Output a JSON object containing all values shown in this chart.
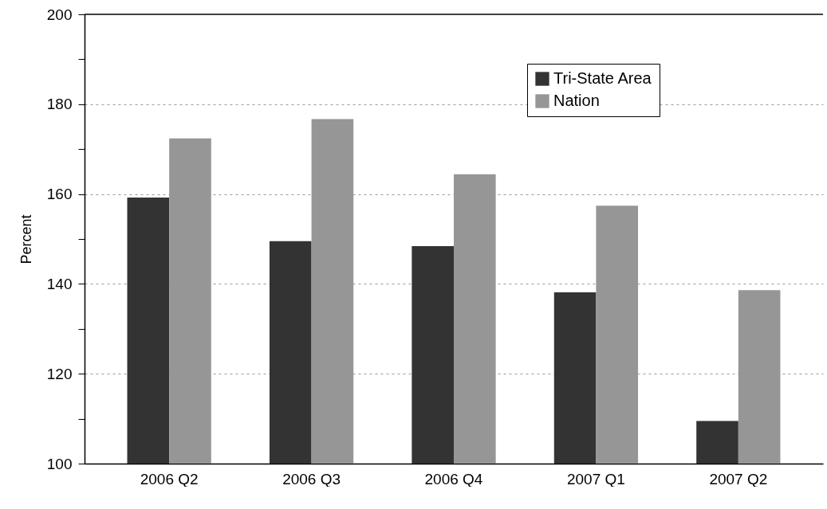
{
  "chart_data": {
    "type": "bar",
    "ylabel": "Percent",
    "categories": [
      "2006 Q2",
      "2006 Q3",
      "2006 Q4",
      "2007 Q1",
      "2007 Q2"
    ],
    "series": [
      {
        "name": "Tri-State Area",
        "color": "#333333",
        "values": [
          159.2,
          149.5,
          148.4,
          138.1,
          109.5
        ]
      },
      {
        "name": "Nation",
        "color": "#969696",
        "values": [
          172.4,
          176.7,
          164.4,
          157.4,
          138.6
        ]
      }
    ],
    "ylim": [
      100,
      200
    ],
    "yticks": [
      100,
      {
        "value": 110,
        "label": null
      },
      120,
      {
        "value": 130,
        "label": null
      },
      140,
      {
        "value": 150,
        "label": null
      },
      160,
      {
        "value": 170,
        "label": null
      },
      180,
      {
        "value": 190,
        "label": null
      },
      200
    ],
    "grid": "y",
    "legend": "top"
  }
}
